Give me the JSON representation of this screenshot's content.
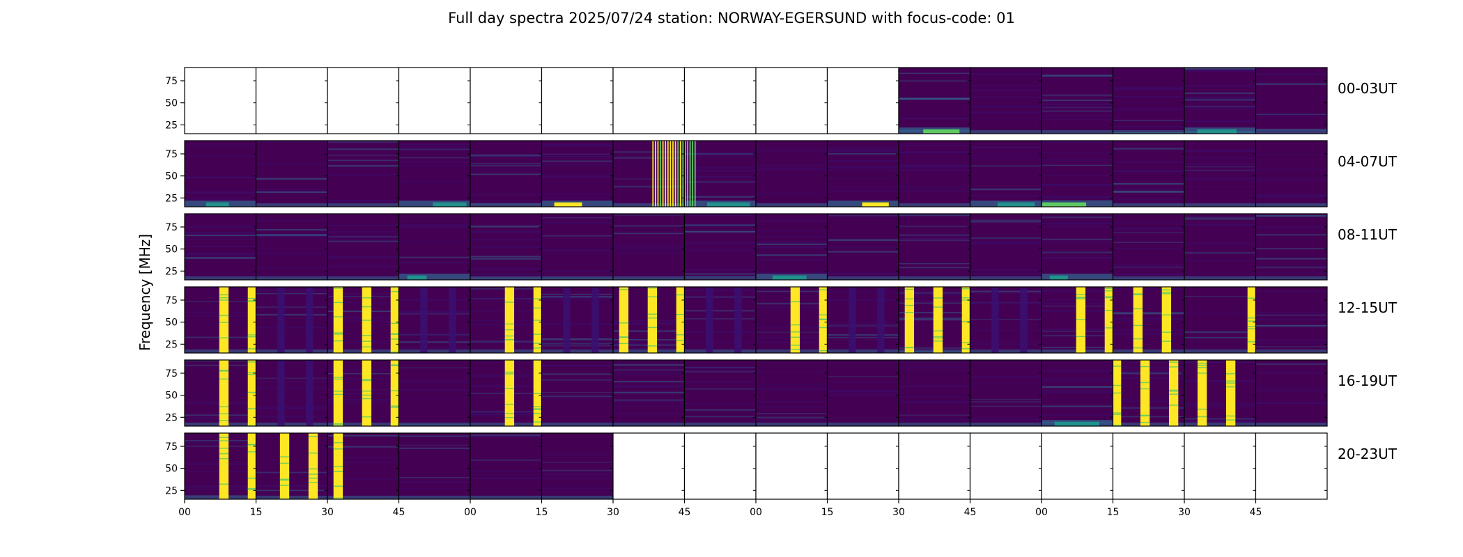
{
  "figure": {
    "title": "Full day spectra 2025/07/24 station: NORWAY-EGERSUND with focus-code: 01"
  },
  "colors": {
    "background_dark": "#440154",
    "background_mid": "#3b0f70",
    "mid_blue": "#31688e",
    "teal": "#21918c",
    "green": "#5ec962",
    "bright_yellow": "#fde725",
    "frame": "#000000"
  },
  "chart_data": {
    "type": "heatmap",
    "description_colormap": "viridis",
    "ylabel": "Frequency [MHz]",
    "ylim": [
      15,
      90
    ],
    "yticks": [
      25,
      50,
      75
    ],
    "xticklabels": [
      "00",
      "15",
      "30",
      "45",
      "00",
      "15",
      "30",
      "45",
      "00",
      "15",
      "30",
      "45",
      "00",
      "15",
      "30",
      "45"
    ],
    "panels_per_row": 16,
    "panel_minutes": 15,
    "rows": [
      {
        "label": "00-03UT",
        "panels": [
          {
            "data": false
          },
          {
            "data": false
          },
          {
            "data": false
          },
          {
            "data": false
          },
          {
            "data": false
          },
          {
            "data": false
          },
          {
            "data": false
          },
          {
            "data": false
          },
          {
            "data": false
          },
          {
            "data": false
          },
          {
            "data": true,
            "low_band": "green",
            "brightness": 0.35
          },
          {
            "data": true,
            "brightness": 0.2
          },
          {
            "data": true,
            "brightness": 0.2
          },
          {
            "data": true,
            "brightness": 0.25
          },
          {
            "data": true,
            "brightness": 0.25,
            "low_band": "teal"
          },
          {
            "data": true,
            "brightness": 0.2
          }
        ]
      },
      {
        "label": "04-07UT",
        "panels": [
          {
            "data": true,
            "brightness": 0.25,
            "low_band": "teal"
          },
          {
            "data": true,
            "brightness": 0.15
          },
          {
            "data": true,
            "brightness": 0.15
          },
          {
            "data": true,
            "brightness": 0.25,
            "low_band": "teal"
          },
          {
            "data": true,
            "brightness": 0.15
          },
          {
            "data": true,
            "brightness": 0.2,
            "low_band": "yellow"
          },
          {
            "data": true,
            "brightness": 0.2,
            "comb": [
              0.55,
              0.99
            ]
          },
          {
            "data": true,
            "brightness": 0.2,
            "comb": [
              0.0,
              0.15
            ],
            "low_band": "teal"
          },
          {
            "data": true,
            "brightness": 0.15
          },
          {
            "data": true,
            "brightness": 0.15,
            "low_band": "yellow"
          },
          {
            "data": true,
            "brightness": 0.15
          },
          {
            "data": true,
            "brightness": 0.2,
            "low_band": "teal"
          },
          {
            "data": true,
            "brightness": 0.2,
            "low_band": "green"
          },
          {
            "data": true,
            "brightness": 0.15
          },
          {
            "data": true,
            "brightness": 0.15
          },
          {
            "data": true,
            "brightness": 0.15
          }
        ]
      },
      {
        "label": "08-11UT",
        "panels": [
          {
            "data": true,
            "brightness": 0.2
          },
          {
            "data": true,
            "brightness": 0.2
          },
          {
            "data": true,
            "brightness": 0.15
          },
          {
            "data": true,
            "brightness": 0.2,
            "low_band": "teal"
          },
          {
            "data": true,
            "brightness": 0.15
          },
          {
            "data": true,
            "brightness": 0.15
          },
          {
            "data": true,
            "brightness": 0.15
          },
          {
            "data": true,
            "brightness": 0.25
          },
          {
            "data": true,
            "brightness": 0.2,
            "low_band": "teal"
          },
          {
            "data": true,
            "brightness": 0.15
          },
          {
            "data": true,
            "brightness": 0.15
          },
          {
            "data": true,
            "brightness": 0.15
          },
          {
            "data": true,
            "brightness": 0.2,
            "low_band": "teal"
          },
          {
            "data": true,
            "brightness": 0.2
          },
          {
            "data": true,
            "brightness": 0.15
          },
          {
            "data": true,
            "brightness": 0.2
          }
        ]
      },
      {
        "label": "12-15UT",
        "panels": [
          {
            "data": true,
            "brightness": 0.15,
            "bursts": [
              0.55,
              0.95
            ]
          },
          {
            "data": true,
            "brightness": 0.15,
            "faint_bursts": [
              0.35,
              0.75
            ]
          },
          {
            "data": true,
            "brightness": 0.15,
            "bursts": [
              0.15,
              0.55,
              0.95
            ]
          },
          {
            "data": true,
            "brightness": 0.12,
            "faint_bursts": [
              0.35,
              0.75
            ]
          },
          {
            "data": true,
            "brightness": 0.15,
            "bursts": [
              0.55,
              0.95
            ]
          },
          {
            "data": true,
            "brightness": 0.15,
            "faint_bursts": [
              0.35,
              0.75
            ]
          },
          {
            "data": true,
            "brightness": 0.15,
            "bursts": [
              0.15,
              0.55,
              0.95
            ]
          },
          {
            "data": true,
            "brightness": 0.12,
            "faint_bursts": [
              0.35,
              0.75
            ]
          },
          {
            "data": true,
            "brightness": 0.15,
            "bursts": [
              0.55,
              0.95
            ]
          },
          {
            "data": true,
            "brightness": 0.12,
            "faint_bursts": [
              0.35,
              0.75
            ]
          },
          {
            "data": true,
            "brightness": 0.15,
            "bursts": [
              0.15,
              0.55,
              0.95
            ]
          },
          {
            "data": true,
            "brightness": 0.12,
            "faint_bursts": [
              0.35,
              0.75
            ]
          },
          {
            "data": true,
            "brightness": 0.15,
            "bursts": [
              0.55,
              0.95
            ]
          },
          {
            "data": true,
            "brightness": 0.15,
            "bursts": [
              0.35,
              0.75
            ]
          },
          {
            "data": true,
            "brightness": 0.15,
            "bursts": [
              0.95
            ]
          },
          {
            "data": true,
            "brightness": 0.12
          }
        ]
      },
      {
        "label": "16-19UT",
        "panels": [
          {
            "data": true,
            "brightness": 0.15,
            "bursts": [
              0.55,
              0.95
            ]
          },
          {
            "data": true,
            "brightness": 0.12,
            "faint_bursts": [
              0.35,
              0.75
            ]
          },
          {
            "data": true,
            "brightness": 0.15,
            "bursts": [
              0.15,
              0.55,
              0.95
            ]
          },
          {
            "data": true,
            "brightness": 0.12
          },
          {
            "data": true,
            "brightness": 0.15,
            "bursts": [
              0.55,
              0.95
            ]
          },
          {
            "data": true,
            "brightness": 0.12
          },
          {
            "data": true,
            "brightness": 0.15
          },
          {
            "data": true,
            "brightness": 0.12
          },
          {
            "data": true,
            "brightness": 0.12
          },
          {
            "data": true,
            "brightness": 0.12
          },
          {
            "data": true,
            "brightness": 0.15
          },
          {
            "data": true,
            "brightness": 0.15
          },
          {
            "data": true,
            "brightness": 0.2,
            "low_band": "teal"
          },
          {
            "data": true,
            "brightness": 0.15,
            "bursts": [
              0.05,
              0.45,
              0.85
            ]
          },
          {
            "data": true,
            "brightness": 0.15,
            "bursts": [
              0.25,
              0.65
            ]
          },
          {
            "data": true,
            "brightness": 0.12
          }
        ]
      },
      {
        "label": "20-23UT",
        "panels": [
          {
            "data": true,
            "brightness": 0.15,
            "bursts": [
              0.55,
              0.95
            ]
          },
          {
            "data": true,
            "brightness": 0.12,
            "bursts": [
              0.4,
              0.8
            ]
          },
          {
            "data": true,
            "brightness": 0.15,
            "bursts": [
              0.15
            ]
          },
          {
            "data": true,
            "brightness": 0.12
          },
          {
            "data": true,
            "brightness": 0.12
          },
          {
            "data": true,
            "brightness": 0.12
          },
          {
            "data": false
          },
          {
            "data": false
          },
          {
            "data": false
          },
          {
            "data": false
          },
          {
            "data": false
          },
          {
            "data": false
          },
          {
            "data": false
          },
          {
            "data": false
          },
          {
            "data": false
          },
          {
            "data": false
          }
        ]
      }
    ]
  }
}
